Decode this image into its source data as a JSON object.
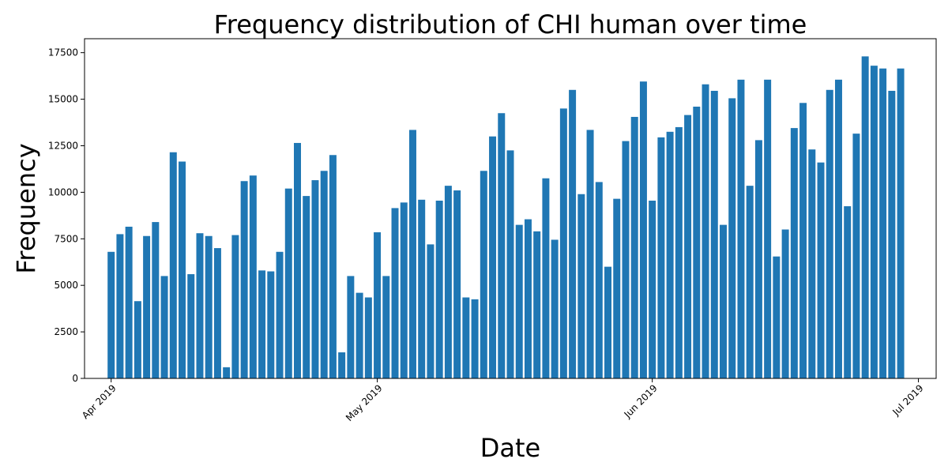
{
  "chart_data": {
    "type": "bar",
    "title": "Frequency distribution of CHI human over time",
    "xlabel": "Date",
    "ylabel": "Frequency",
    "x_axis": {
      "type": "date",
      "range": [
        "2019-03-29",
        "2019-07-03"
      ],
      "ticks": [
        {
          "date": "2019-04-01",
          "label": "Apr 2019"
        },
        {
          "date": "2019-05-01",
          "label": "May 2019"
        },
        {
          "date": "2019-06-01",
          "label": "Jun 2019"
        },
        {
          "date": "2019-07-01",
          "label": "Jul 2019"
        }
      ]
    },
    "y_axis": {
      "range": [
        0,
        18250
      ],
      "ticks": [
        0,
        2500,
        5000,
        7500,
        10000,
        12500,
        15000,
        17500
      ]
    },
    "grid": false,
    "legend": "none",
    "bar_color": "#1f77b4",
    "x": [
      "2019-04-01",
      "2019-04-02",
      "2019-04-03",
      "2019-04-04",
      "2019-04-05",
      "2019-04-06",
      "2019-04-07",
      "2019-04-08",
      "2019-04-09",
      "2019-04-10",
      "2019-04-11",
      "2019-04-12",
      "2019-04-13",
      "2019-04-14",
      "2019-04-15",
      "2019-04-16",
      "2019-04-17",
      "2019-04-18",
      "2019-04-19",
      "2019-04-20",
      "2019-04-21",
      "2019-04-22",
      "2019-04-23",
      "2019-04-24",
      "2019-04-25",
      "2019-04-26",
      "2019-04-27",
      "2019-04-28",
      "2019-04-29",
      "2019-04-30",
      "2019-05-01",
      "2019-05-02",
      "2019-05-03",
      "2019-05-04",
      "2019-05-05",
      "2019-05-06",
      "2019-05-07",
      "2019-05-08",
      "2019-05-09",
      "2019-05-10",
      "2019-05-11",
      "2019-05-12",
      "2019-05-13",
      "2019-05-14",
      "2019-05-15",
      "2019-05-16",
      "2019-05-17",
      "2019-05-18",
      "2019-05-19",
      "2019-05-20",
      "2019-05-21",
      "2019-05-22",
      "2019-05-23",
      "2019-05-24",
      "2019-05-25",
      "2019-05-26",
      "2019-05-27",
      "2019-05-28",
      "2019-05-29",
      "2019-05-30",
      "2019-05-31",
      "2019-06-01",
      "2019-06-02",
      "2019-06-03",
      "2019-06-04",
      "2019-06-05",
      "2019-06-06",
      "2019-06-07",
      "2019-06-08",
      "2019-06-09",
      "2019-06-10",
      "2019-06-11",
      "2019-06-12",
      "2019-06-13",
      "2019-06-14",
      "2019-06-15",
      "2019-06-16",
      "2019-06-17",
      "2019-06-18",
      "2019-06-19",
      "2019-06-20",
      "2019-06-21",
      "2019-06-22",
      "2019-06-23",
      "2019-06-24",
      "2019-06-25",
      "2019-06-26",
      "2019-06-27",
      "2019-06-28",
      "2019-06-29",
      "2019-06-30"
    ],
    "values": [
      6800,
      7750,
      8150,
      4150,
      7650,
      8400,
      5500,
      12150,
      11650,
      5600,
      7800,
      7650,
      7000,
      600,
      7700,
      10600,
      10900,
      5800,
      5750,
      6800,
      10200,
      12650,
      9800,
      10650,
      11150,
      12000,
      1400,
      5500,
      4600,
      4350,
      7850,
      5500,
      9150,
      9450,
      13350,
      9600,
      7200,
      9550,
      10350,
      10100,
      4350,
      4250,
      11150,
      13000,
      14250,
      12250,
      8250,
      8550,
      7900,
      10750,
      7450,
      14500,
      15500,
      9900,
      13350,
      10550,
      6000,
      9650,
      12750,
      14050,
      15950,
      9550,
      12950,
      13250,
      13500,
      14150,
      14600,
      15800,
      15450,
      8250,
      15050,
      16050,
      10350,
      12800,
      16050,
      6550,
      8000,
      13450,
      14800,
      12300,
      11600,
      15500,
      16050,
      9250,
      13150,
      17300,
      16800,
      16650,
      15450,
      16650,
      0
    ]
  }
}
